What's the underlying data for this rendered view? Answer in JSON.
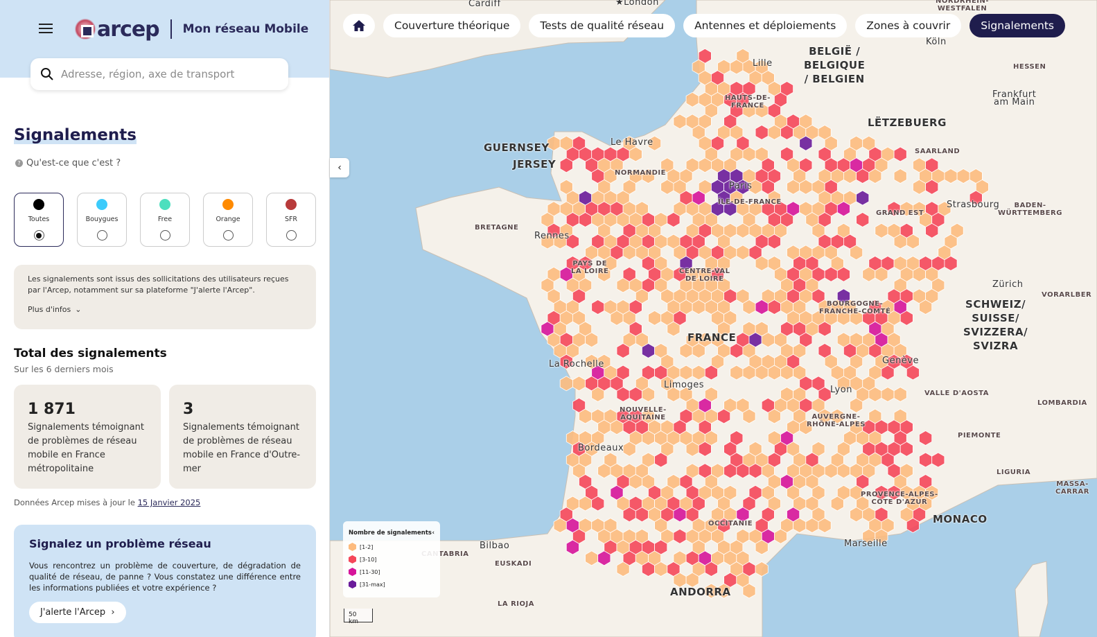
{
  "header": {
    "brand": "arcep",
    "app_title": "Mon réseau Mobile",
    "search_placeholder": "Adresse, région, axe de transport"
  },
  "panel": {
    "title": "Signalements",
    "what_is": "Qu'est-ce que c'est ?",
    "operators": [
      {
        "label": "Toutes",
        "color": "#000000",
        "selected": true
      },
      {
        "label": "Bouygues",
        "color": "#3ccbfb",
        "selected": false
      },
      {
        "label": "Free",
        "color": "#4ddfbe",
        "selected": false
      },
      {
        "label": "Orange",
        "color": "#ff8a00",
        "selected": false
      },
      {
        "label": "SFR",
        "color": "#b83b3b",
        "selected": false
      }
    ],
    "info_text": "Les signalements sont issus des sollicitations des utilisateurs reçues par l'Arcep, notamment sur sa plateforme \"J'alerte l'Arcep\".",
    "more_info": "Plus d'infos",
    "total_title": "Total des signalements",
    "total_sub": "Sur les 6 derniers mois",
    "cards": [
      {
        "value": "1 871",
        "text": "Signalements témoignant de problèmes de réseau mobile en France métropolitaine"
      },
      {
        "value": "3",
        "text": "Signalements témoignant de problèmes de réseau mobile en France d'Outre-mer"
      }
    ],
    "updated_prefix": "Données Arcep mises à jour le ",
    "updated_date": "15 Janvier 2025",
    "report_title": "Signalez un problème réseau",
    "report_text": "Vous rencontrez un problème de couverture, de dégradation de qualité de réseau, de panne ? Vous constatez une différence entre les informations publiées et votre expérience ?",
    "report_button": "J'alerte l'Arcep"
  },
  "tabs": [
    {
      "label": "Couverture théorique"
    },
    {
      "label": "Tests de qualité réseau"
    },
    {
      "label": "Antennes et déploiements"
    },
    {
      "label": "Zones à couvrir"
    },
    {
      "label": "Signalements",
      "active": true
    }
  ],
  "legend": {
    "title": "Nombre de signalements",
    "items": [
      {
        "label": "[1-2]",
        "color": "#fdbb7e"
      },
      {
        "label": "[3-10]",
        "color": "#f5475a"
      },
      {
        "label": "[11-30]",
        "color": "#d6149a"
      },
      {
        "label": "[31-max]",
        "color": "#6a1b9a"
      }
    ]
  },
  "scale": "50 km",
  "map_labels": [
    {
      "t": "Cardiff",
      "c": "city",
      "p": [
        676,
        0
      ]
    },
    {
      "t": "★London",
      "c": "city",
      "p": [
        888,
        -2
      ]
    },
    {
      "t": "NORDRHEIN-\nWESTFALEN",
      "c": "",
      "p": [
        1350,
        -4
      ]
    },
    {
      "t": "Köln",
      "c": "city",
      "p": [
        1336,
        55
      ]
    },
    {
      "t": "BELGIË /\nBELGIQUE\n/ BELGIEN",
      "c": "country",
      "p": [
        1160,
        64
      ]
    },
    {
      "t": "HESSEN",
      "c": "",
      "p": [
        1462,
        91
      ]
    },
    {
      "t": "Lille",
      "c": "city",
      "p": [
        1086,
        86
      ]
    },
    {
      "t": "Frankfurt\nam Main",
      "c": "city",
      "p": [
        1432,
        131
      ]
    },
    {
      "t": "HAUTS-DE-\nFRANCE",
      "c": "",
      "p": [
        1046,
        136
      ]
    },
    {
      "t": "LËTZEBUERG",
      "c": "country",
      "p": [
        1252,
        167
      ]
    },
    {
      "t": "GUERNSEY",
      "c": "country",
      "p": [
        698,
        203
      ]
    },
    {
      "t": "Le Havre",
      "c": "city",
      "p": [
        881,
        200
      ]
    },
    {
      "t": "SAARLAND",
      "c": "",
      "p": [
        1320,
        213
      ]
    },
    {
      "t": "JERSEY",
      "c": "country",
      "p": [
        740,
        227
      ]
    },
    {
      "t": "NORMANDIE",
      "c": "",
      "p": [
        887,
        244
      ]
    },
    {
      "t": "Paris",
      "c": "city",
      "p": [
        1052,
        263
      ]
    },
    {
      "t": "ÎLE-DE-FRANCE",
      "c": "",
      "p": [
        1036,
        286
      ]
    },
    {
      "t": "Strasbourg",
      "c": "city",
      "p": [
        1366,
        290
      ]
    },
    {
      "t": "BADEN-\nWÜRTTEMBERG",
      "c": "",
      "p": [
        1440,
        291
      ]
    },
    {
      "t": "GRAND EST",
      "c": "",
      "p": [
        1264,
        302
      ]
    },
    {
      "t": "BRETAGNE",
      "c": "",
      "p": [
        685,
        323
      ]
    },
    {
      "t": "Rennes",
      "c": "city",
      "p": [
        771,
        335
      ]
    },
    {
      "t": "PAYS DE\nLA LOIRE",
      "c": "",
      "p": [
        824,
        375
      ]
    },
    {
      "t": "CENTRE-VAL\nDE LOIRE",
      "c": "",
      "p": [
        980,
        386
      ]
    },
    {
      "t": "Zürich",
      "c": "city",
      "p": [
        1432,
        405
      ]
    },
    {
      "t": "VORARLBER",
      "c": "",
      "p": [
        1503,
        420
      ]
    },
    {
      "t": "SCHWEIZ/\nSUISSE/\nSVIZZERA/\nSVIZRA",
      "c": "country",
      "p": [
        1390,
        429
      ]
    },
    {
      "t": "BOURGOGNE-\nFRANCHE-COMTÉ",
      "c": "",
      "p": [
        1182,
        433
      ]
    },
    {
      "t": "FRANCE",
      "c": "big",
      "p": [
        992,
        477
      ]
    },
    {
      "t": "Genève",
      "c": "city",
      "p": [
        1273,
        515
      ]
    },
    {
      "t": "La Rochelle",
      "c": "city",
      "p": [
        792,
        520
      ]
    },
    {
      "t": "Limoges",
      "c": "city",
      "p": [
        958,
        550
      ]
    },
    {
      "t": "Lyon",
      "c": "city",
      "p": [
        1198,
        557
      ]
    },
    {
      "t": "VALLE D'AOSTA",
      "c": "",
      "p": [
        1334,
        562
      ]
    },
    {
      "t": "LOMBARDIA",
      "c": "",
      "p": [
        1497,
        576
      ]
    },
    {
      "t": "NOUVELLE-\nAQUITAINE",
      "c": "",
      "p": [
        894,
        586
      ]
    },
    {
      "t": "AUVERGNE-\nRHÔNE-ALPES",
      "c": "",
      "p": [
        1164,
        596
      ]
    },
    {
      "t": "PIEMONTE",
      "c": "",
      "p": [
        1382,
        623
      ]
    },
    {
      "t": "Bordeaux",
      "c": "city",
      "p": [
        834,
        641
      ]
    },
    {
      "t": "LIGURIA",
      "c": "",
      "p": [
        1438,
        676
      ]
    },
    {
      "t": "MASSA-\nCARRAR",
      "c": "",
      "p": [
        1523,
        693
      ]
    },
    {
      "t": "PROVENCE-ALPES-\nCÔTE D'AZUR",
      "c": "",
      "p": [
        1242,
        708
      ]
    },
    {
      "t": "MONACO",
      "c": "country",
      "p": [
        1346,
        739
      ]
    },
    {
      "t": "OCCITANIE",
      "c": "",
      "p": [
        1022,
        750
      ]
    },
    {
      "t": "Bilbao",
      "c": "city",
      "p": [
        692,
        782
      ]
    },
    {
      "t": "Marseille",
      "c": "city",
      "p": [
        1218,
        779
      ]
    },
    {
      "t": "CANTABRIA",
      "c": "",
      "p": [
        608,
        794
      ]
    },
    {
      "t": "EUSKADI",
      "c": "",
      "p": [
        714,
        808
      ]
    },
    {
      "t": "ANDORRA",
      "c": "country",
      "p": [
        967,
        844
      ]
    },
    {
      "t": "LA RIOJA",
      "c": "",
      "p": [
        718,
        866
      ]
    }
  ]
}
